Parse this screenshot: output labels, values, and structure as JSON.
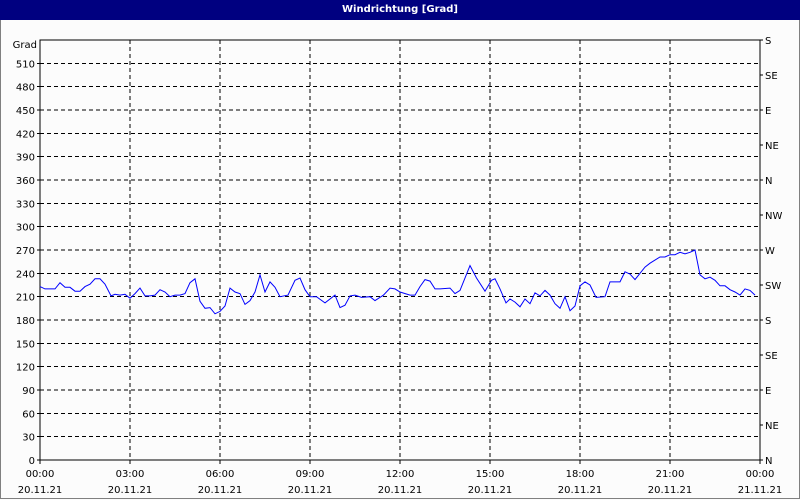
{
  "window": {
    "title": "Windrichtung [Grad]"
  },
  "chart_data": {
    "type": "line",
    "title": "Windrichtung [Grad]",
    "ylabel": "Grad",
    "ylim": [
      0,
      540
    ],
    "grid": true,
    "y_ticks": [
      0,
      30,
      60,
      90,
      120,
      150,
      180,
      210,
      240,
      270,
      300,
      330,
      360,
      390,
      420,
      450,
      480,
      510
    ],
    "right_axis_ticks": [
      {
        "value": 0,
        "label": "N"
      },
      {
        "value": 45,
        "label": "NE"
      },
      {
        "value": 90,
        "label": "E"
      },
      {
        "value": 135,
        "label": "SE"
      },
      {
        "value": 180,
        "label": "S"
      },
      {
        "value": 225,
        "label": "SW"
      },
      {
        "value": 270,
        "label": "W"
      },
      {
        "value": 315,
        "label": "NW"
      },
      {
        "value": 360,
        "label": "N"
      },
      {
        "value": 405,
        "label": "NE"
      },
      {
        "value": 450,
        "label": "E"
      },
      {
        "value": 495,
        "label": "SE"
      },
      {
        "value": 540,
        "label": "S"
      }
    ],
    "x_ticks": [
      {
        "time": "00:00",
        "date": "20.11.21"
      },
      {
        "time": "03:00",
        "date": "20.11.21"
      },
      {
        "time": "06:00",
        "date": "20.11.21"
      },
      {
        "time": "09:00",
        "date": "20.11.21"
      },
      {
        "time": "12:00",
        "date": "20.11.21"
      },
      {
        "time": "15:00",
        "date": "20.11.21"
      },
      {
        "time": "18:00",
        "date": "20.11.21"
      },
      {
        "time": "21:00",
        "date": "20.11.21"
      },
      {
        "time": "00:00",
        "date": "21.11.21"
      }
    ],
    "xlim": [
      "20.11.21 00:00",
      "21.11.21 00:00"
    ],
    "line_color": "#0000ff",
    "series": [
      {
        "x": [
          "00:00",
          "00:10",
          "00:30",
          "00:40",
          "00:50",
          "01:00",
          "01:10",
          "01:20",
          "01:30",
          "01:40",
          "01:50",
          "02:00",
          "02:10",
          "02:22",
          "02:30",
          "02:40",
          "02:50",
          "03:00",
          "03:10",
          "03:20",
          "03:30",
          "03:40",
          "03:50",
          "04:00",
          "04:10",
          "04:20",
          "04:30",
          "04:40",
          "04:50",
          "05:00",
          "05:10",
          "05:20",
          "05:30",
          "05:40",
          "05:50",
          "06:00",
          "06:10",
          "06:20",
          "06:30",
          "06:40",
          "06:50",
          "07:00",
          "07:10",
          "07:20",
          "07:30",
          "07:40",
          "07:50",
          "08:00",
          "08:16",
          "08:30",
          "08:40",
          "08:50",
          "09:00",
          "09:13",
          "09:30",
          "09:50",
          "10:00",
          "10:10",
          "10:20",
          "10:30",
          "10:43",
          "11:00",
          "11:10",
          "11:27",
          "11:40",
          "11:50",
          "12:00",
          "12:20",
          "12:30",
          "12:40",
          "12:50",
          "13:00",
          "13:10",
          "13:20",
          "13:40",
          "13:50",
          "14:00",
          "14:20",
          "14:33",
          "14:50",
          "15:03",
          "15:10",
          "15:20",
          "15:32",
          "15:40",
          "15:50",
          "16:00",
          "16:10",
          "16:20",
          "16:30",
          "16:40",
          "16:50",
          "17:00",
          "17:10",
          "17:20",
          "17:30",
          "17:40",
          "17:50",
          "18:00",
          "18:10",
          "18:20",
          "18:32",
          "18:50",
          "19:00",
          "19:20",
          "19:30",
          "19:40",
          "19:50",
          "20:00",
          "20:10",
          "20:20",
          "20:30",
          "20:40",
          "20:50",
          "21:00",
          "21:10",
          "21:20",
          "21:30",
          "21:40",
          "21:50",
          "22:00",
          "22:10",
          "22:20",
          "22:30",
          "22:40",
          "22:50",
          "23:00",
          "23:10",
          "23:20",
          "23:30",
          "23:40",
          "23:50"
        ],
        "y": [
          223,
          220,
          220,
          228,
          222,
          222,
          217,
          217,
          223,
          226,
          233,
          233,
          226,
          211,
          213,
          212,
          213,
          208,
          214,
          221,
          211,
          211,
          212,
          219,
          216,
          210,
          212,
          212,
          214,
          228,
          233,
          204,
          195,
          196,
          188,
          191,
          198,
          221,
          216,
          214,
          200,
          205,
          216,
          238,
          216,
          229,
          222,
          210,
          212,
          231,
          234,
          219,
          210,
          210,
          202,
          212,
          196,
          199,
          211,
          212,
          209,
          210,
          205,
          212,
          221,
          220,
          216,
          212,
          212,
          223,
          232,
          230,
          220,
          220,
          221,
          214,
          218,
          250,
          234,
          217,
          231,
          233,
          220,
          202,
          207,
          203,
          197,
          207,
          201,
          215,
          211,
          218,
          212,
          201,
          195,
          210,
          192,
          198,
          224,
          229,
          225,
          209,
          210,
          229,
          229,
          242,
          239,
          232,
          240,
          248,
          253,
          257,
          261,
          261,
          264,
          264,
          267,
          265,
          267,
          270,
          238,
          233,
          235,
          231,
          224,
          224,
          219,
          216,
          212,
          220,
          218,
          212
        ]
      }
    ]
  }
}
